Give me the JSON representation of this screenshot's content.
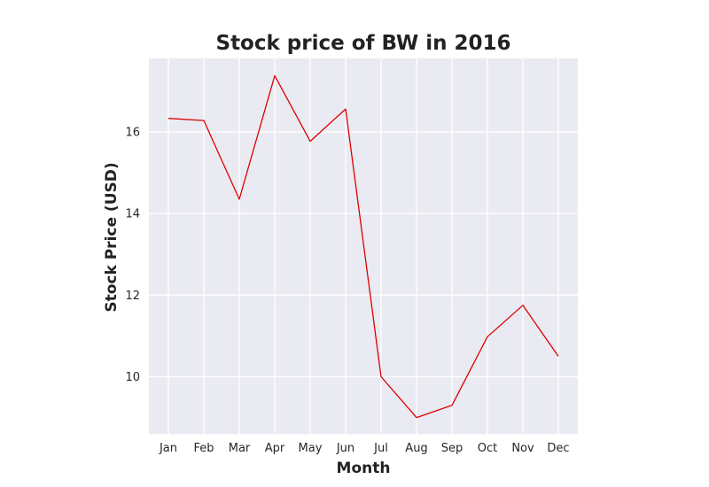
{
  "chart_data": {
    "type": "line",
    "title": "Stock price of BW in 2016",
    "xlabel": "Month",
    "ylabel": "Stock Price (USD)",
    "categories": [
      "Jan",
      "Feb",
      "Mar",
      "Apr",
      "May",
      "Jun",
      "Jul",
      "Aug",
      "Sep",
      "Oct",
      "Nov",
      "Dec"
    ],
    "series": [
      {
        "values": [
          16.33,
          16.28,
          14.35,
          17.38,
          15.77,
          16.56,
          10.0,
          9.0,
          9.3,
          10.98,
          11.75,
          10.5
        ]
      }
    ],
    "yticks": [
      10,
      12,
      14,
      16
    ],
    "ylim": [
      8.6,
      17.8
    ],
    "grid": true,
    "legend": "none",
    "colors": {
      "plot_background": "#eaeaf2",
      "grid": "#ffffff",
      "line": "#dd0000",
      "text": "#262626"
    }
  }
}
